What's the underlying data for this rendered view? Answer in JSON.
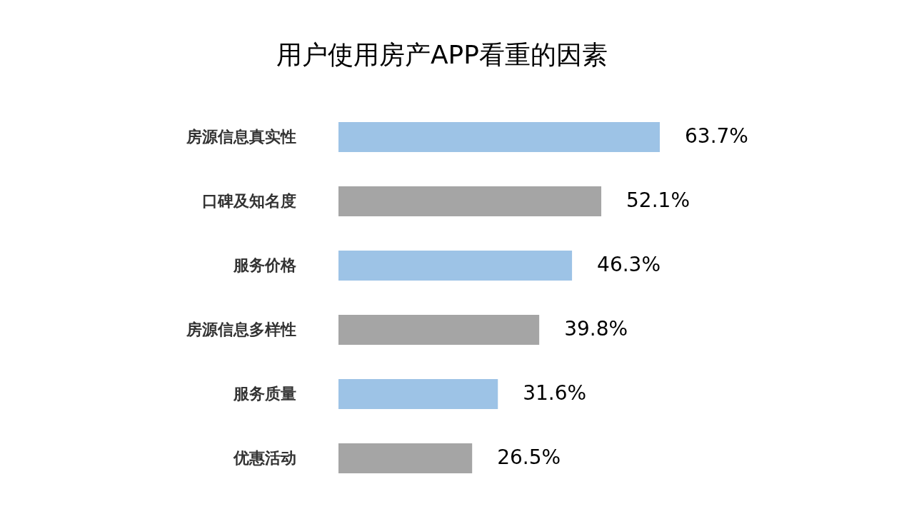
{
  "chart_data": {
    "type": "bar",
    "orientation": "horizontal",
    "title": "用户使用房产APP看重的因素",
    "categories": [
      "房源信息真实性",
      "口碑及知名度",
      "服务价格",
      "房源信息多样性",
      "服务质量",
      "优惠活动"
    ],
    "values": [
      63.7,
      52.1,
      46.3,
      39.8,
      31.6,
      26.5
    ],
    "colors": [
      "#9dc3e6",
      "#a5a5a5",
      "#9dc3e6",
      "#a5a5a5",
      "#9dc3e6",
      "#a5a5a5"
    ],
    "value_labels": [
      "63.7%",
      "52.1%",
      "46.3%",
      "39.8%",
      "31.6%",
      "26.5%"
    ],
    "grid": false
  }
}
